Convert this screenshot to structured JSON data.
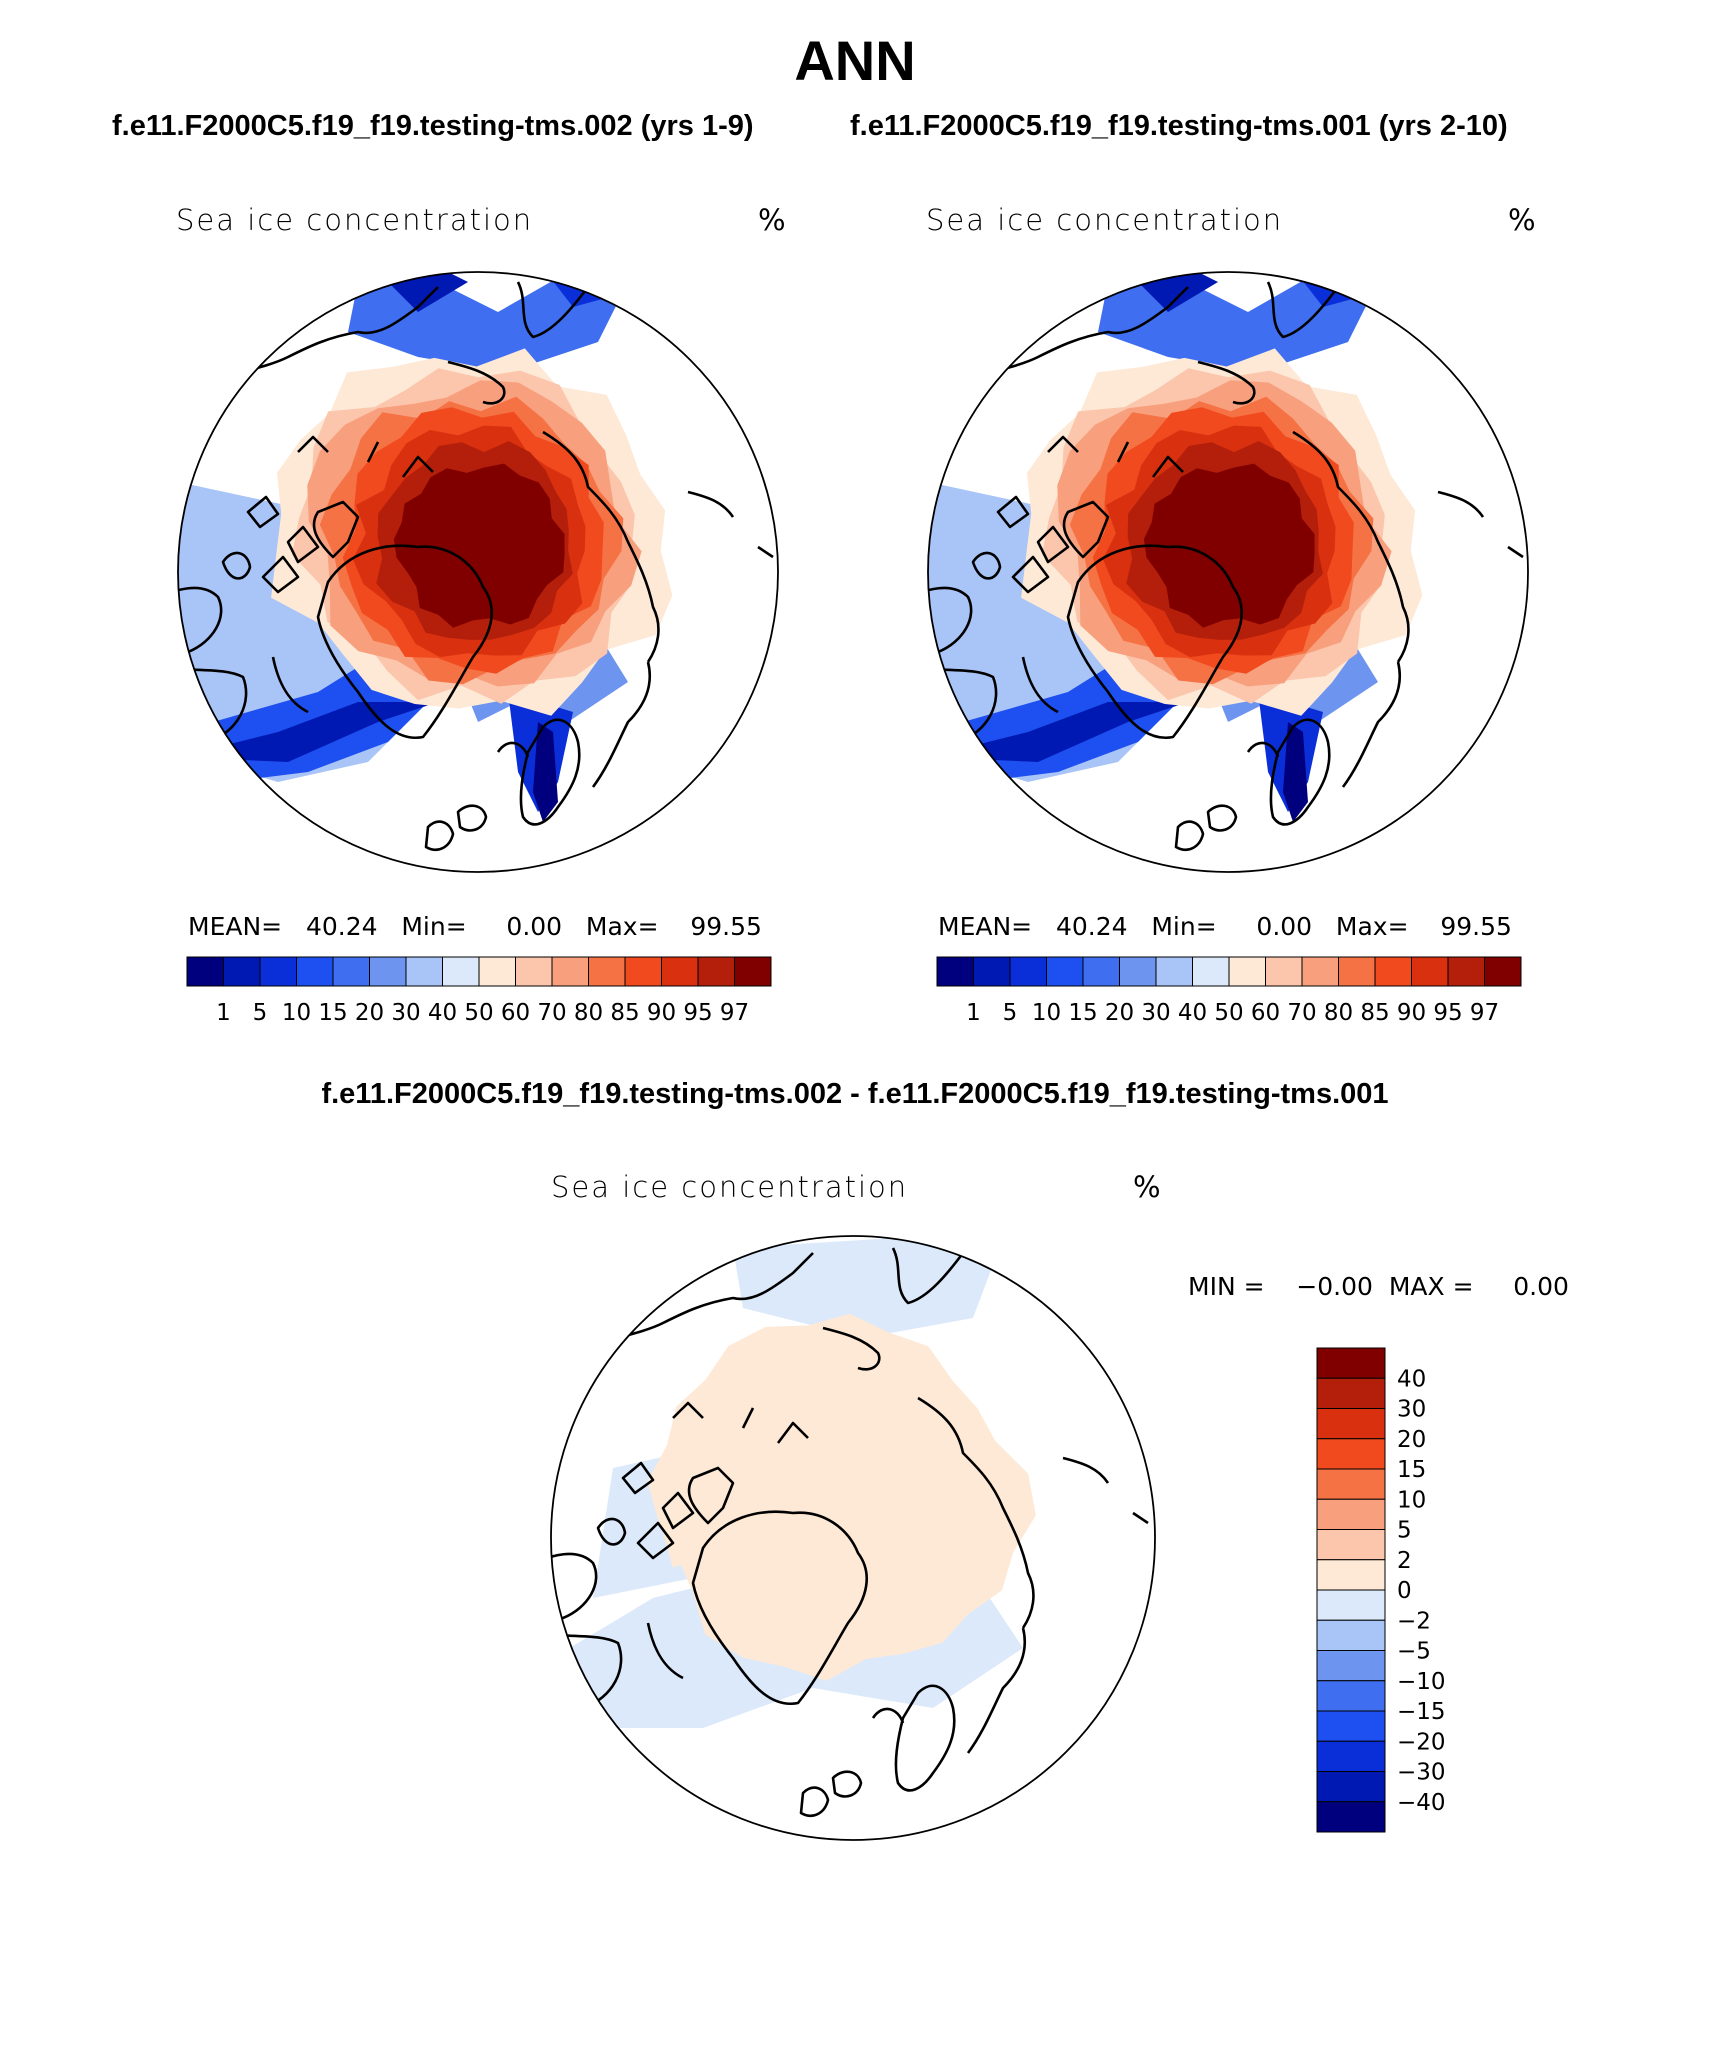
{
  "figure": {
    "title": "ANN",
    "case1_title": "f.e11.F2000C5.f19_f19.testing-tms.002 (yrs 1-9)",
    "case2_title": "f.e11.F2000C5.f19_f19.testing-tms.001 (yrs 2-10)",
    "diff_title": "f.e11.F2000C5.f19_f19.testing-tms.002 - f.e11.F2000C5.f19_f19.testing-tms.001"
  },
  "panels": {
    "left": {
      "variable": "Sea ice concentration",
      "units": "%",
      "stats_text": "MEAN=   40.24   Min=     0.00   Max=    99.55"
    },
    "right": {
      "variable": "Sea ice concentration",
      "units": "%",
      "stats_text": "MEAN=   40.24   Min=     0.00   Max=    99.55"
    },
    "diff": {
      "variable": "Sea ice concentration",
      "units": "%",
      "minmax_text": "MIN =    −0.00  MAX =     0.00"
    }
  },
  "chart_data": [
    {
      "type": "heatmap",
      "projection": "north polar stereographic",
      "variable": "Sea ice concentration",
      "units": "%",
      "mean": 40.24,
      "min": 0.0,
      "max": 99.55,
      "colorbar": {
        "orientation": "horizontal",
        "levels": [
          "1",
          "5",
          "10",
          "15",
          "20",
          "30",
          "40",
          "50",
          "60",
          "70",
          "80",
          "85",
          "90",
          "95",
          "97"
        ],
        "colors": [
          "#00007f",
          "#0019b3",
          "#0a2fd9",
          "#1e4ff0",
          "#3f6ff0",
          "#6d95f0",
          "#a9c4f7",
          "#dbe9fb",
          "#fde9d6",
          "#fbc6ac",
          "#f8a07e",
          "#f57245",
          "#f04a1e",
          "#d9300f",
          "#b31f0a",
          "#800000"
        ]
      }
    },
    {
      "type": "heatmap",
      "projection": "north polar stereographic",
      "variable": "Sea ice concentration",
      "units": "%",
      "mean": 40.24,
      "min": 0.0,
      "max": 99.55,
      "colorbar": {
        "orientation": "horizontal",
        "levels": [
          "1",
          "5",
          "10",
          "15",
          "20",
          "30",
          "40",
          "50",
          "60",
          "70",
          "80",
          "85",
          "90",
          "95",
          "97"
        ],
        "colors": [
          "#00007f",
          "#0019b3",
          "#0a2fd9",
          "#1e4ff0",
          "#3f6ff0",
          "#6d95f0",
          "#a9c4f7",
          "#dbe9fb",
          "#fde9d6",
          "#fbc6ac",
          "#f8a07e",
          "#f57245",
          "#f04a1e",
          "#d9300f",
          "#b31f0a",
          "#800000"
        ]
      }
    },
    {
      "type": "heatmap",
      "projection": "north polar stereographic",
      "variable": "Sea ice concentration",
      "units": "%",
      "min": -0.0,
      "max": 0.0,
      "colorbar": {
        "orientation": "vertical",
        "levels": [
          "40",
          "30",
          "20",
          "15",
          "10",
          "5",
          "2",
          "0",
          "−2",
          "−5",
          "−10",
          "−15",
          "−20",
          "−30",
          "−40"
        ],
        "colors": [
          "#800000",
          "#b31f0a",
          "#d9300f",
          "#f04a1e",
          "#f57245",
          "#f8a07e",
          "#fbc6ac",
          "#fde9d6",
          "#dbe9fb",
          "#a9c4f7",
          "#6d95f0",
          "#3f6ff0",
          "#1e4ff0",
          "#0a2fd9",
          "#0019b3",
          "#00007f"
        ]
      }
    }
  ]
}
